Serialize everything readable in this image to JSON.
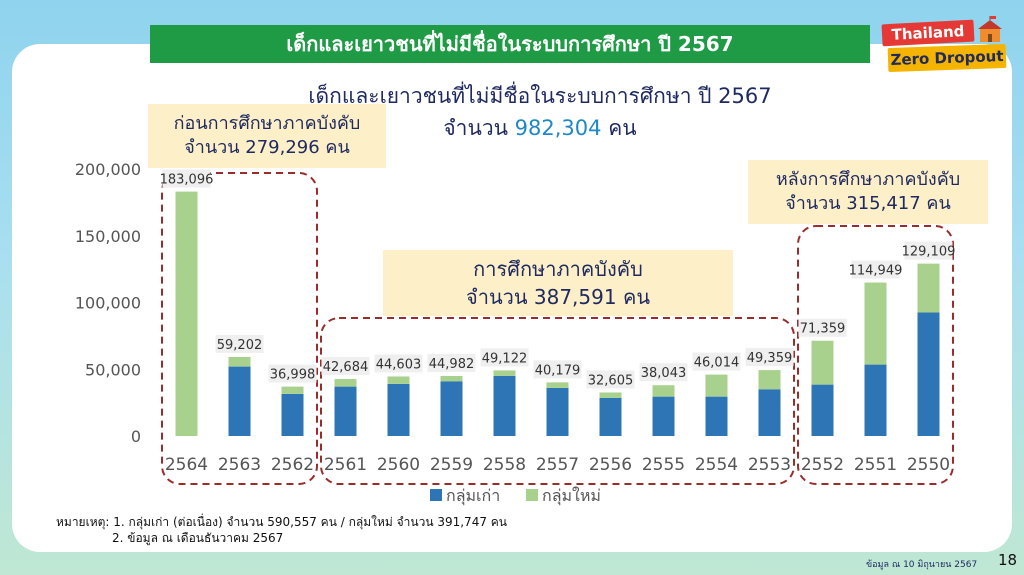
{
  "title_bar": "เด็กและเยาวชนที่ไม่มีชื่อในระบบการศึกษา ปี 2567",
  "logo": {
    "line1": "Thailand",
    "line2": "Zero Dropout"
  },
  "headline": {
    "line1": "เด็กและเยาวชนที่ไม่มีชื่อในระบบการศึกษา ปี 2567",
    "line2_prefix": "จำนวน",
    "line2_number": "982,304",
    "line2_suffix": "คน"
  },
  "callouts": {
    "before": {
      "line1": "ก่อนการศึกษาภาคบังคับ",
      "line2": "จำนวน 279,296 คน"
    },
    "compulsory": {
      "line1": "การศึกษาภาคบังคับ",
      "line2": "จำนวน 387,591 คน"
    },
    "after": {
      "line1": "หลังการศึกษาภาคบังคับ",
      "line2": "จำนวน 315,417 คน"
    }
  },
  "chart_data": {
    "type": "bar",
    "stacked": true,
    "categories": [
      "2564",
      "2563",
      "2562",
      "2561",
      "2560",
      "2559",
      "2558",
      "2557",
      "2556",
      "2555",
      "2554",
      "2553",
      "2552",
      "2551",
      "2550"
    ],
    "series": [
      {
        "name": "กลุ่มเก่า",
        "color": "#2e75b6",
        "values": [
          0,
          52000,
          31500,
          37000,
          39000,
          41000,
          45000,
          36000,
          28500,
          29500,
          29500,
          35000,
          38500,
          53500,
          92500
        ]
      },
      {
        "name": "กลุ่มใหม่",
        "color": "#a9d18e",
        "values": [
          183096,
          7202,
          5498,
          5684,
          5603,
          3982,
          4122,
          4179,
          4105,
          8543,
          16514,
          14359,
          32859,
          61449,
          36609
        ]
      }
    ],
    "data_labels": [
      "183,096",
      "59,202",
      "36,998",
      "42,684",
      "44,603",
      "44,982",
      "49,122",
      "40,179",
      "32,605",
      "38,043",
      "46,014",
      "49,359",
      "71,359",
      "114,949",
      "129,109"
    ],
    "y_ticks": [
      "200,000",
      "150,000",
      "100,000",
      "50,000",
      "0"
    ],
    "ylim": [
      0,
      200000
    ],
    "legend_position": "bottom",
    "grid": false
  },
  "notes": {
    "line1": "หมายเหตุ: 1. กลุ่มเก่า (ต่อเนื่อง) จำนวน 590,557  คน / กลุ่มใหม่ จำนวน 391,747 คน",
    "line2": "2. ข้อมูล ณ เดือนธันวาคม 2567"
  },
  "source": "ข้อมูล ณ 10 มิถุนายน 2567",
  "page_number": "18"
}
